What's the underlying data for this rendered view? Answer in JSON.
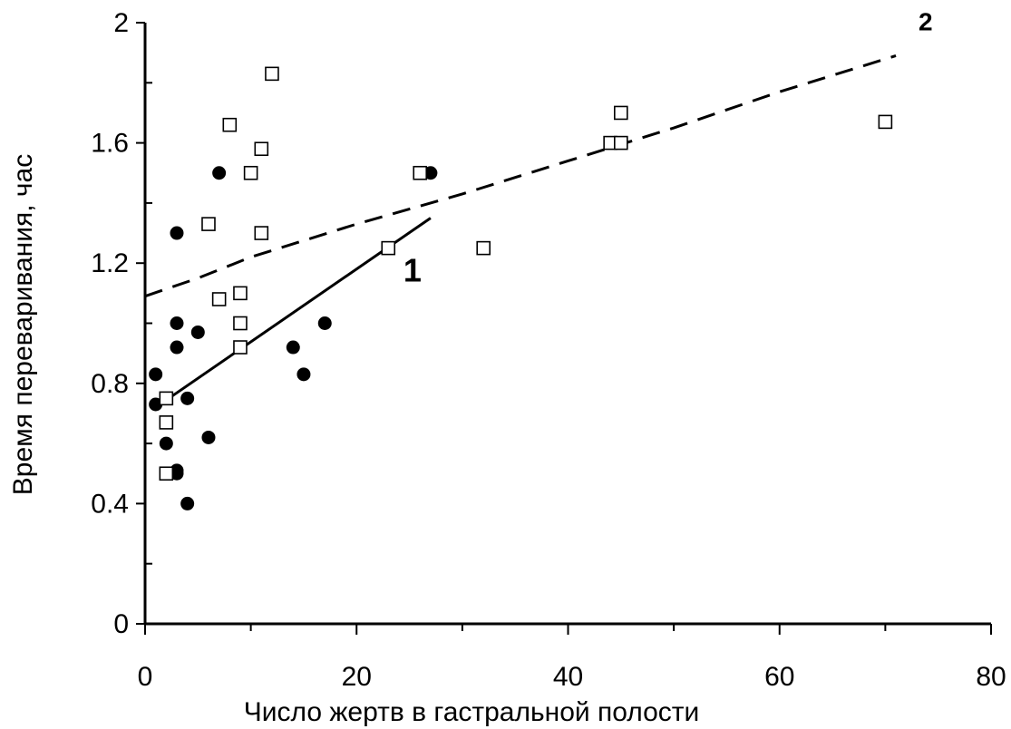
{
  "chart_data": {
    "type": "scatter",
    "title": "",
    "xlabel": "Число жертв в гастральной полости",
    "ylabel": "Время переваривания, час",
    "xlim": [
      0,
      80
    ],
    "ylim": [
      0,
      2
    ],
    "x_ticks": [
      "0",
      "20",
      "40",
      "60",
      "80"
    ],
    "y_ticks": [
      "0",
      "0.4",
      "0.8",
      "1.2",
      "1.6",
      "2"
    ],
    "grid": false,
    "series": [
      {
        "name": "1",
        "marker": "filled-circle",
        "color": "#000000",
        "points": [
          {
            "x": 1,
            "y": 0.83
          },
          {
            "x": 1,
            "y": 0.73
          },
          {
            "x": 2,
            "y": 0.6
          },
          {
            "x": 3,
            "y": 1.3
          },
          {
            "x": 3,
            "y": 1.0
          },
          {
            "x": 3,
            "y": 0.92
          },
          {
            "x": 3,
            "y": 0.51
          },
          {
            "x": 3,
            "y": 0.5
          },
          {
            "x": 4,
            "y": 0.75
          },
          {
            "x": 4,
            "y": 0.4
          },
          {
            "x": 5,
            "y": 0.97
          },
          {
            "x": 6,
            "y": 0.62
          },
          {
            "x": 7,
            "y": 1.5
          },
          {
            "x": 14,
            "y": 0.92
          },
          {
            "x": 15,
            "y": 0.83
          },
          {
            "x": 17,
            "y": 1.0
          },
          {
            "x": 27,
            "y": 1.5
          }
        ],
        "trend": {
          "style": "solid",
          "points": [
            {
              "x": 1,
              "y": 0.72
            },
            {
              "x": 27,
              "y": 1.35
            }
          ]
        }
      },
      {
        "name": "2",
        "marker": "open-square",
        "color": "#000000",
        "points": [
          {
            "x": 2,
            "y": 0.75
          },
          {
            "x": 2,
            "y": 0.67
          },
          {
            "x": 2,
            "y": 0.5
          },
          {
            "x": 6,
            "y": 1.33
          },
          {
            "x": 7,
            "y": 1.08
          },
          {
            "x": 8,
            "y": 1.66
          },
          {
            "x": 9,
            "y": 1.1
          },
          {
            "x": 9,
            "y": 1.0
          },
          {
            "x": 9,
            "y": 0.92
          },
          {
            "x": 10,
            "y": 1.5
          },
          {
            "x": 11,
            "y": 1.58
          },
          {
            "x": 11,
            "y": 1.3
          },
          {
            "x": 12,
            "y": 1.83
          },
          {
            "x": 23,
            "y": 1.25
          },
          {
            "x": 26,
            "y": 1.5
          },
          {
            "x": 32,
            "y": 1.25
          },
          {
            "x": 44,
            "y": 1.6
          },
          {
            "x": 45,
            "y": 1.7
          },
          {
            "x": 45,
            "y": 1.6
          },
          {
            "x": 70,
            "y": 1.67
          }
        ],
        "trend": {
          "style": "dashed",
          "points": [
            {
              "x": 0,
              "y": 1.09
            },
            {
              "x": 5,
              "y": 1.15
            },
            {
              "x": 10,
              "y": 1.22
            },
            {
              "x": 20,
              "y": 1.33
            },
            {
              "x": 30,
              "y": 1.43
            },
            {
              "x": 40,
              "y": 1.54
            },
            {
              "x": 50,
              "y": 1.65
            },
            {
              "x": 60,
              "y": 1.77
            },
            {
              "x": 71,
              "y": 1.89
            }
          ]
        }
      }
    ]
  }
}
